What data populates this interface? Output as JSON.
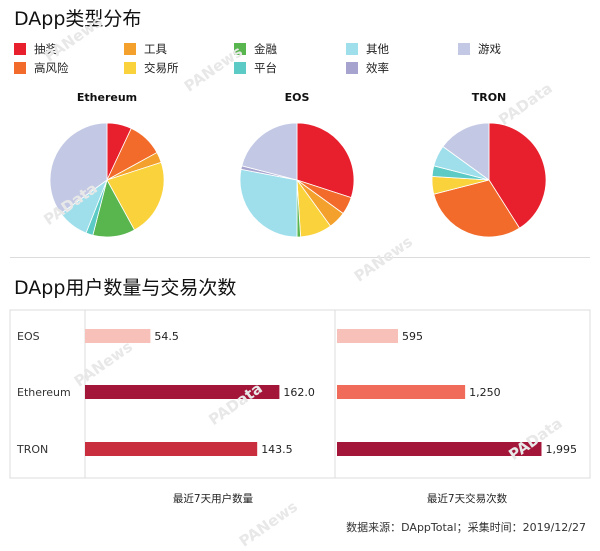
{
  "titles": {
    "section1": "DApp类型分布",
    "section2": "DApp用户数量与交易次数"
  },
  "legend": [
    {
      "label": "抽奖",
      "color": "#e8202d"
    },
    {
      "label": "工具",
      "color": "#f4a02c"
    },
    {
      "label": "金融",
      "color": "#59b54e"
    },
    {
      "label": "其他",
      "color": "#9fdfec"
    },
    {
      "label": "游戏",
      "color": "#c3c9e4"
    },
    {
      "label": "高风险",
      "color": "#f26b2a"
    },
    {
      "label": "交易所",
      "color": "#f9d23c"
    },
    {
      "label": "平台",
      "color": "#5ccbc6"
    },
    {
      "label": "效率",
      "color": "#a6a3cf"
    }
  ],
  "watermarks": [
    "PANews",
    "PAData"
  ],
  "chart_data": [
    {
      "type": "pie",
      "title": "Ethereum",
      "slices": [
        {
          "category": "抽奖",
          "value": 7
        },
        {
          "category": "高风险",
          "value": 10
        },
        {
          "category": "工具",
          "value": 3
        },
        {
          "category": "交易所",
          "value": 22
        },
        {
          "category": "金融",
          "value": 12
        },
        {
          "category": "平台",
          "value": 2
        },
        {
          "category": "其他",
          "value": 9
        },
        {
          "category": "游戏",
          "value": 35
        }
      ]
    },
    {
      "type": "pie",
      "title": "EOS",
      "slices": [
        {
          "category": "抽奖",
          "value": 30
        },
        {
          "category": "高风险",
          "value": 5
        },
        {
          "category": "工具",
          "value": 5
        },
        {
          "category": "交易所",
          "value": 9
        },
        {
          "category": "金融",
          "value": 1
        },
        {
          "category": "其他",
          "value": 28
        },
        {
          "category": "效率",
          "value": 1
        },
        {
          "category": "游戏",
          "value": 21
        }
      ]
    },
    {
      "type": "pie",
      "title": "TRON",
      "slices": [
        {
          "category": "抽奖",
          "value": 41
        },
        {
          "category": "高风险",
          "value": 30
        },
        {
          "category": "交易所",
          "value": 5
        },
        {
          "category": "平台",
          "value": 3
        },
        {
          "category": "其他",
          "value": 6
        },
        {
          "category": "游戏",
          "value": 15
        }
      ]
    },
    {
      "type": "bar",
      "orientation": "horizontal",
      "xlabel": "最近7天用户数量",
      "categories": [
        "EOS",
        "Ethereum",
        "TRON"
      ],
      "values": [
        54.5,
        162.0,
        143.5
      ],
      "value_labels": [
        "54.5",
        "162.0",
        "143.5"
      ],
      "colors": [
        "#f7c1ba",
        "#a3163a",
        "#c92e3e"
      ],
      "xlim": [
        0,
        200
      ]
    },
    {
      "type": "bar",
      "orientation": "horizontal",
      "xlabel": "最近7天交易次数",
      "categories": [
        "EOS",
        "Ethereum",
        "TRON"
      ],
      "values": [
        595,
        1250,
        1995
      ],
      "value_labels": [
        "595",
        "1,250",
        "1,995"
      ],
      "colors": [
        "#f7c1ba",
        "#f06b5a",
        "#a3163a"
      ],
      "xlim": [
        0,
        2000
      ]
    }
  ],
  "source": "数据来源：DAppTotal；采集时间：2019/12/27"
}
